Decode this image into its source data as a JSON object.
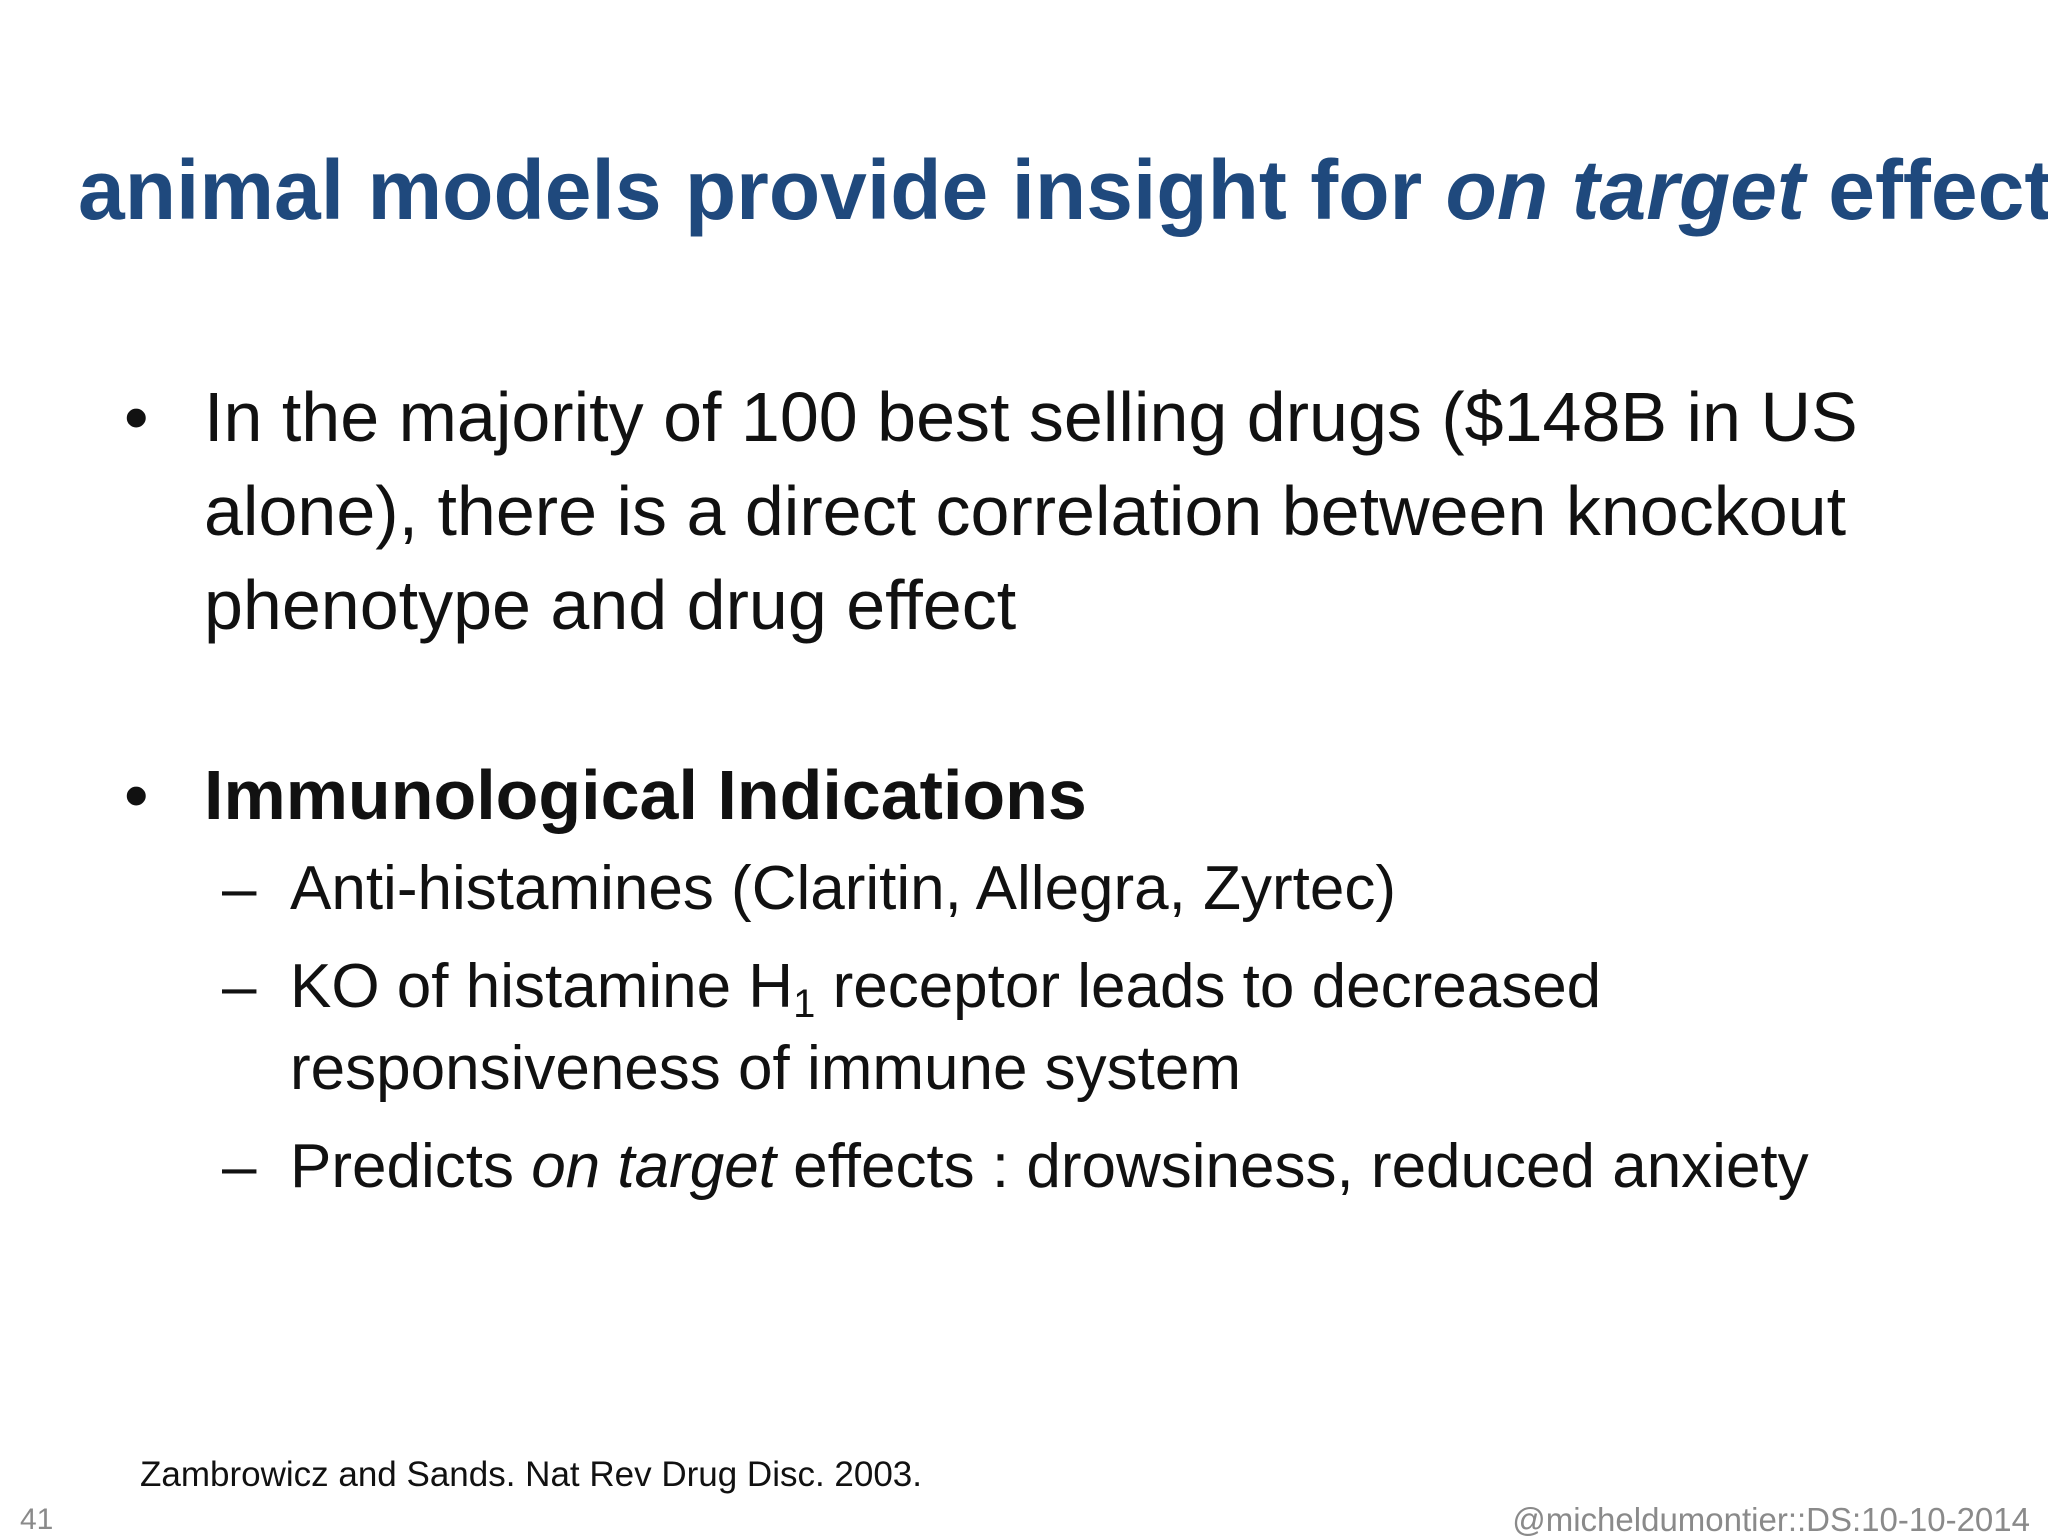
{
  "slide": {
    "title": {
      "part1": "animal models provide insight for ",
      "italic": "on target",
      "part2": " effects"
    },
    "bullets": [
      {
        "text": "In the majority of 100 best selling drugs ($148B in US alone), there is a direct correlation between knockout phenotype and drug effect"
      },
      {
        "heading": "Immunological Indications",
        "subitems": [
          {
            "text": "Anti-histamines (Claritin, Allegra, Zyrtec)"
          },
          {
            "pre": "KO of histamine H",
            "subscript": "1",
            "post": " receptor leads to decreased responsiveness of immune system"
          },
          {
            "pre": "Predicts ",
            "italic": "on target",
            "post": " effects : drowsiness, reduced anxiety"
          }
        ]
      }
    ],
    "reference": "Zambrowicz and Sands. Nat Rev Drug Disc. 2003.",
    "page_number": "41",
    "credit": "@micheldumontier::DS:10-10-2014"
  }
}
